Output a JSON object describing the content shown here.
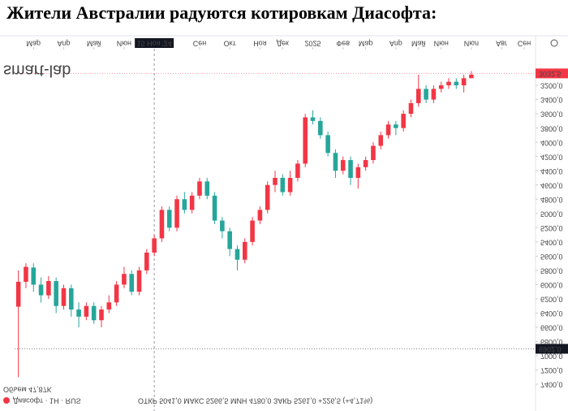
{
  "title": "Жители Австралии радуются котировкам Диасофта:",
  "chart_data": {
    "type": "candlestick",
    "watermark": "smart-lab",
    "legend": "Диасофт · 1Н · RUS",
    "ohlc_text": "ОТКР 5041,0 МАКС 5266,5 МИН 4780,0 ЗАКР 5261,0 +226,5 (+4,71%)",
    "volume_text": "Объем 47,87K",
    "crosshair": {
      "value": 18,
      "label": "15 Ноя '24"
    },
    "price_labels": [
      {
        "value": 3032.5,
        "label": "3032,5",
        "color": "#f23645"
      },
      {
        "value": 6902,
        "label": "6902,0",
        "color": "#131722"
      }
    ],
    "open": [
      6310,
      5960,
      5760,
      6000,
      6150,
      5950,
      6300,
      6050,
      6350,
      6450,
      6300,
      6500,
      6350,
      6250,
      6000,
      5850,
      6100,
      5800,
      5550,
      5350,
      4950,
      5200,
      4800,
      4950,
      4750,
      4550,
      4750,
      5100,
      5250,
      5500,
      5650,
      5400,
      5100,
      4950,
      4600,
      4500,
      4700,
      4500,
      4300,
      3650,
      3700,
      3900,
      4150,
      4400,
      4250,
      4500,
      4350,
      4250,
      4050,
      3900,
      3750,
      3800,
      3600,
      3450,
      3250,
      3400,
      3250,
      3200,
      3150,
      3200,
      3100
    ],
    "high": [
      7300,
      6050,
      6100,
      6250,
      6200,
      6400,
      6350,
      6450,
      6600,
      6500,
      6550,
      6600,
      6400,
      6300,
      6050,
      6150,
      6150,
      5850,
      5600,
      5400,
      5250,
      5250,
      5000,
      5000,
      4800,
      4800,
      5150,
      5350,
      5600,
      5800,
      5700,
      5450,
      5150,
      5000,
      4700,
      4750,
      4750,
      4550,
      4350,
      3750,
      3950,
      4200,
      4500,
      4450,
      4600,
      4650,
      4400,
      4300,
      4100,
      3950,
      3900,
      3850,
      3650,
      3500,
      3450,
      3450,
      3300,
      3250,
      3250,
      3300,
      3100
    ],
    "low": [
      5800,
      5700,
      5700,
      5900,
      5880,
      5900,
      6000,
      6000,
      6250,
      6250,
      6250,
      6300,
      6150,
      5950,
      5750,
      5800,
      5750,
      5500,
      5300,
      4900,
      4900,
      4750,
      4700,
      4700,
      4500,
      4500,
      4700,
      5050,
      5200,
      5450,
      5350,
      5050,
      4900,
      4550,
      4400,
      4450,
      4400,
      4250,
      3600,
      3550,
      3650,
      3850,
      4100,
      4200,
      4200,
      4300,
      4200,
      4000,
      3850,
      3700,
      3700,
      3550,
      3400,
      3050,
      3200,
      3200,
      3150,
      3100,
      3100,
      3050,
      3000
    ],
    "close": [
      5960,
      5750,
      6000,
      6150,
      5950,
      6300,
      6050,
      6350,
      6450,
      6300,
      6500,
      6350,
      6250,
      6000,
      5850,
      6100,
      5800,
      5550,
      5350,
      4950,
      5200,
      4800,
      4950,
      4750,
      4550,
      4750,
      5100,
      5250,
      5500,
      5650,
      5400,
      5100,
      4950,
      4600,
      4500,
      4700,
      4500,
      4300,
      3650,
      3700,
      3900,
      4150,
      4400,
      4250,
      4500,
      4350,
      4250,
      4050,
      3900,
      3750,
      3800,
      3600,
      3450,
      3250,
      3400,
      3250,
      3200,
      3150,
      3200,
      3100,
      3050
    ],
    "up_color": "#26a69a",
    "down_color": "#f23645",
    "xlim": [
      -0.5,
      68.5
    ],
    "xticks": [
      {
        "value": 2,
        "label": "Мар"
      },
      {
        "value": 6,
        "label": "Апр"
      },
      {
        "value": 10,
        "label": "Май"
      },
      {
        "value": 14,
        "label": "Июн"
      },
      {
        "value": 24,
        "label": "Сен"
      },
      {
        "value": 28,
        "label": "Окт"
      },
      {
        "value": 32,
        "label": "Ноя"
      },
      {
        "value": 35,
        "label": "Дек"
      },
      {
        "value": 39,
        "label": "2025"
      },
      {
        "value": 43,
        "label": "Фев"
      },
      {
        "value": 46,
        "label": "Мар"
      },
      {
        "value": 50,
        "label": "Апр"
      },
      {
        "value": 53,
        "label": "Май"
      },
      {
        "value": 56,
        "label": "Июн"
      },
      {
        "value": 60,
        "label": "Июл"
      },
      {
        "value": 64,
        "label": "Авг"
      },
      {
        "value": 67,
        "label": "Сен"
      }
    ],
    "ylim": [
      2800,
      7650
    ],
    "yticks": [
      {
        "value": 3200,
        "label": "3200,0"
      },
      {
        "value": 3400,
        "label": "3400,0"
      },
      {
        "value": 3600,
        "label": "3600,0"
      },
      {
        "value": 3800,
        "label": "3800,0"
      },
      {
        "value": 4000,
        "label": "4000,0"
      },
      {
        "value": 4200,
        "label": "4200,0"
      },
      {
        "value": 4400,
        "label": "4400,0"
      },
      {
        "value": 4600,
        "label": "4600,0"
      },
      {
        "value": 4800,
        "label": "4800,0"
      },
      {
        "value": 5000,
        "label": "5000,0"
      },
      {
        "value": 5200,
        "label": "5200,0"
      },
      {
        "value": 5400,
        "label": "5400,0"
      },
      {
        "value": 5600,
        "label": "5600,0"
      },
      {
        "value": 5800,
        "label": "5800,0"
      },
      {
        "value": 6000,
        "label": "6000,0"
      },
      {
        "value": 6200,
        "label": "6200,0"
      },
      {
        "value": 6400,
        "label": "6400,0"
      },
      {
        "value": 6600,
        "label": "6600,0"
      },
      {
        "value": 6800,
        "label": "6800,0"
      },
      {
        "value": 7000,
        "label": "7000,0"
      },
      {
        "value": 7200,
        "label": "7200,0"
      },
      {
        "value": 7400,
        "label": "7400,0"
      }
    ],
    "y_inverted": true
  }
}
